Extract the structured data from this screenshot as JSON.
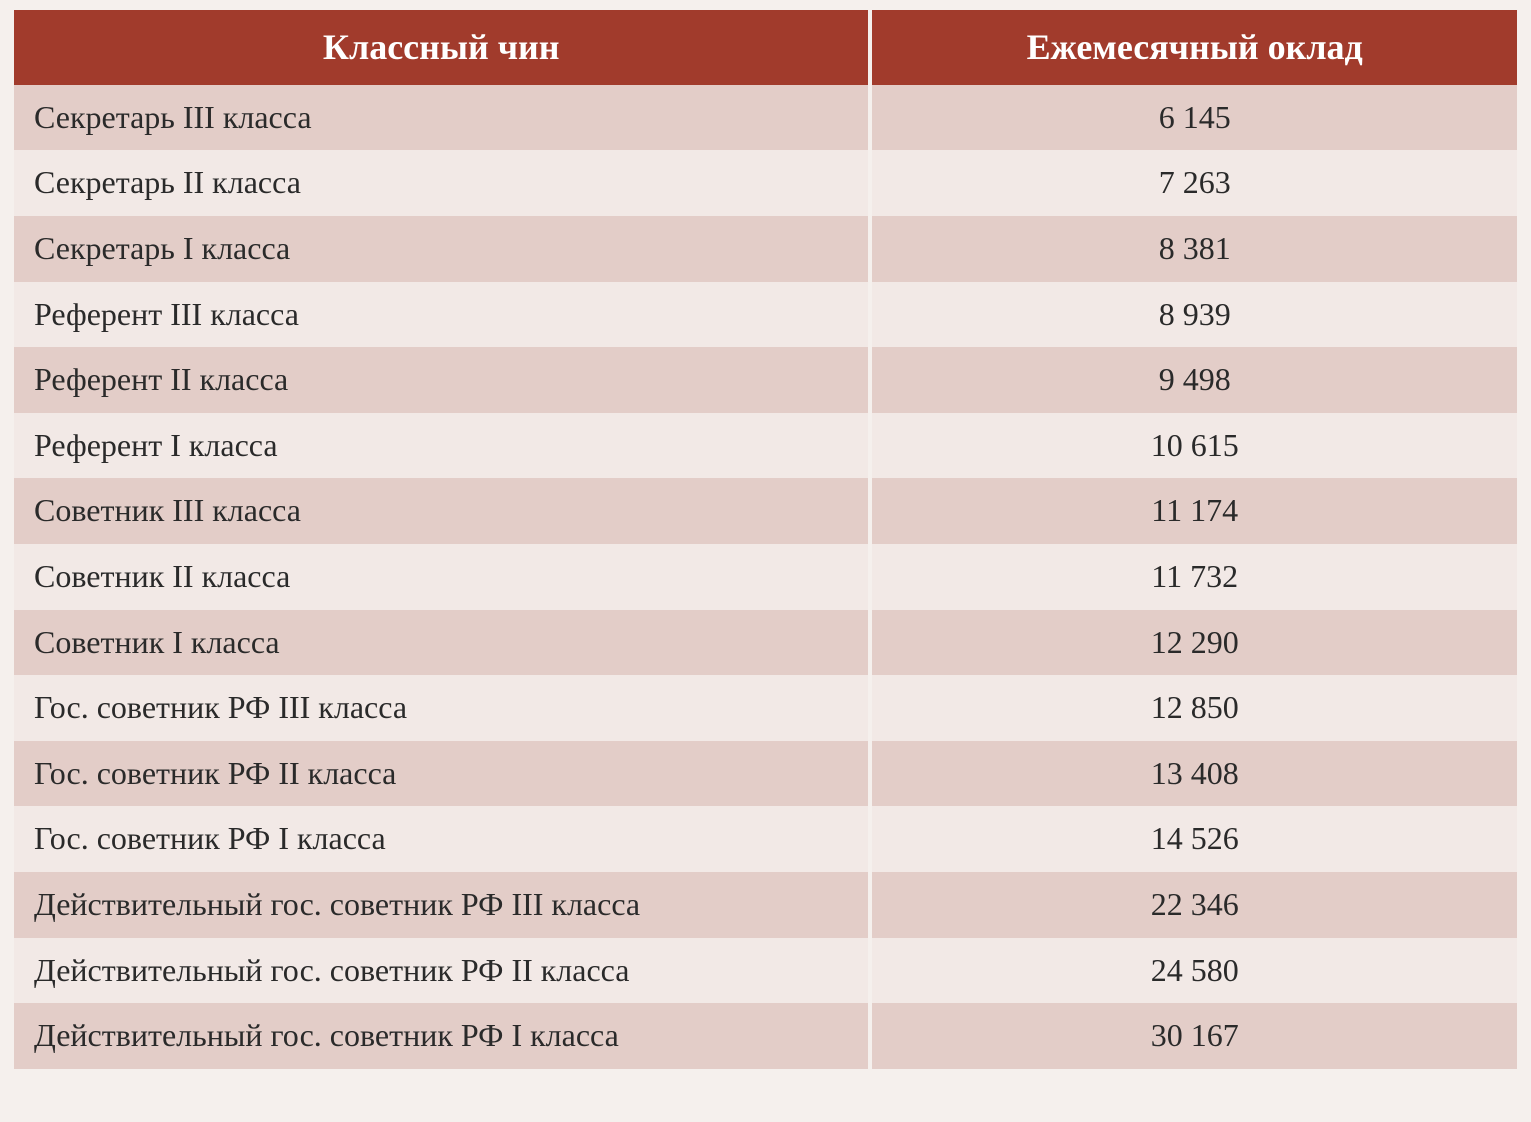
{
  "table": {
    "type": "table",
    "columns": [
      {
        "label": "Классный чин",
        "align": "center",
        "width_pct": 57
      },
      {
        "label": "Ежемесячный оклад",
        "align": "center",
        "width_pct": 43
      }
    ],
    "rows": [
      [
        "Секретарь III класса",
        "6 145"
      ],
      [
        "Секретарь II класса",
        "7 263"
      ],
      [
        "Секретарь I класса",
        "8 381"
      ],
      [
        "Референт III класса",
        "8 939"
      ],
      [
        "Референт II класса",
        "9 498"
      ],
      [
        "Референт I класса",
        "10 615"
      ],
      [
        "Советник III класса",
        "11 174"
      ],
      [
        "Советник II класса",
        "11 732"
      ],
      [
        "Советник I класса",
        "12 290"
      ],
      [
        "Гос. советник РФ III класса",
        "12 850"
      ],
      [
        "Гос. советник РФ II класса",
        "13 408"
      ],
      [
        "Гос. советник РФ I класса",
        "14 526"
      ],
      [
        "Действительный гос. советник РФ III класса",
        "22 346"
      ],
      [
        "Действительный гос. советник РФ II класса",
        "24 580"
      ],
      [
        "Действительный гос. советник РФ I класса",
        "30 167"
      ]
    ],
    "header_bg_color": "#a13b2c",
    "header_text_color": "#ffffff",
    "header_fontsize": 36,
    "header_fontweight": "bold",
    "row_odd_bg_color": "#e3cdc8",
    "row_even_bg_color": "#f2e9e6",
    "cell_text_color": "#2a2a2a",
    "cell_fontsize": 32,
    "page_bg_color": "#f5f0ed",
    "border_spacing_x": 4,
    "font_family": "Garamond, Times New Roman, serif"
  }
}
